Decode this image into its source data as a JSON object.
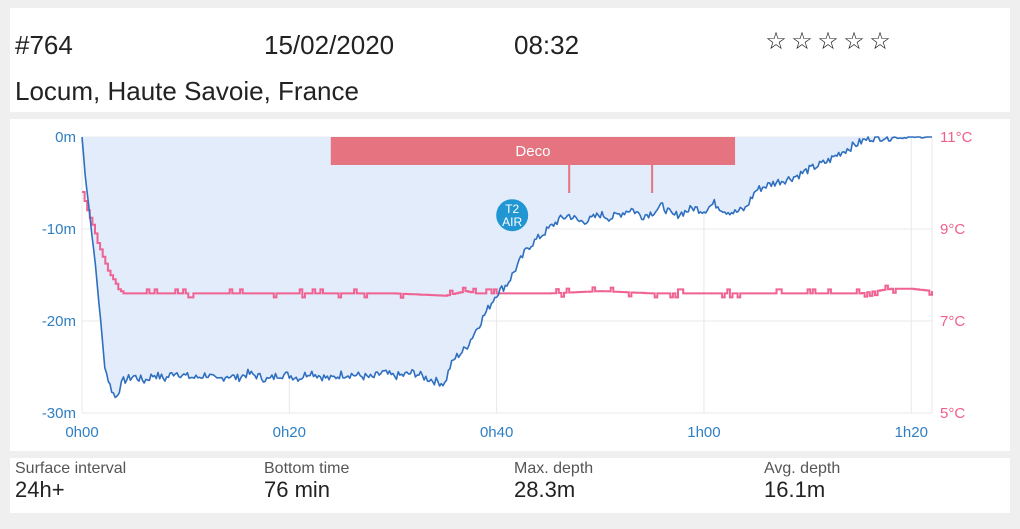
{
  "header": {
    "dive_number": "#764",
    "date": "15/02/2020",
    "time": "08:32",
    "rating": {
      "stars": 0,
      "max": 5,
      "empty_star_glyph": "☆",
      "full_star_glyph": "★"
    },
    "location": "Locum, Haute Savoie, France"
  },
  "colors": {
    "depth_line": "#2f6fbf",
    "depth_fill": "#e2ecfb",
    "temp_line": "#f06292",
    "deco_bar": "#e57380",
    "axis_left_text": "#2f7fc4",
    "axis_right_text": "#ef5f8a",
    "gas_badge": "#2196d3",
    "grid": "#e8e8e8"
  },
  "chart_data": {
    "type": "line",
    "x_ticks": [
      "0h00",
      "0h20",
      "0h40",
      "1h00",
      "1h20"
    ],
    "x_tick_minutes": [
      0,
      20,
      40,
      60,
      80
    ],
    "xlim": [
      0,
      82
    ],
    "depth_axis": {
      "ticks": [
        "0m",
        "-10m",
        "-20m",
        "-30m"
      ],
      "tick_values": [
        0,
        -10,
        -20,
        -30
      ],
      "ylim": [
        -30,
        0
      ]
    },
    "temp_axis": {
      "ticks": [
        "11°C",
        "9°C",
        "7°C",
        "5°C"
      ],
      "tick_values": [
        11,
        9,
        7,
        5
      ],
      "ylim": [
        5,
        11
      ]
    },
    "series": [
      {
        "name": "",
        "kind": "depth",
        "x": [
          0,
          0.3,
          0.8,
          1.3,
          1.8,
          2.2,
          2.7,
          3.2,
          4,
          5,
          6,
          7,
          8,
          9,
          10,
          11,
          12,
          13,
          14,
          15,
          16,
          17,
          18,
          19,
          20,
          21,
          22,
          23,
          24,
          25,
          26,
          27,
          28,
          29,
          30,
          31,
          32,
          33,
          34,
          35,
          35.5,
          36,
          37,
          38,
          39,
          40,
          41,
          42,
          43,
          44,
          45,
          46,
          47,
          48,
          49,
          50,
          51,
          52,
          53,
          54,
          55,
          56,
          57,
          58,
          59,
          60,
          61,
          62,
          63,
          64,
          65,
          66,
          67,
          68,
          69,
          70,
          71,
          72,
          73,
          74,
          75,
          76,
          77,
          78,
          79,
          80,
          81,
          82
        ],
        "y": [
          0,
          -4,
          -9,
          -14,
          -20,
          -25,
          -27,
          -28.3,
          -26.5,
          -26,
          -26.5,
          -25.8,
          -26.3,
          -25.5,
          -26,
          -26.2,
          -25.8,
          -26.5,
          -25.9,
          -26.2,
          -25.7,
          -26,
          -26.4,
          -25.8,
          -25.9,
          -26.2,
          -25.5,
          -26,
          -26.3,
          -25.8,
          -25.8,
          -26,
          -26.2,
          -25.6,
          -26,
          -25.9,
          -25.6,
          -26.1,
          -26.5,
          -26.8,
          -25,
          -24,
          -23,
          -21,
          -19,
          -17,
          -16,
          -14,
          -12,
          -11,
          -10,
          -9,
          -8.5,
          -9.2,
          -9,
          -8.4,
          -8.8,
          -8.3,
          -7.8,
          -8.6,
          -8.2,
          -7.5,
          -8.6,
          -8.2,
          -7.7,
          -8,
          -7.2,
          -8,
          -8.2,
          -7.8,
          -5.8,
          -5.3,
          -4.9,
          -4.6,
          -4.2,
          -3.6,
          -3.1,
          -2.6,
          -1.8,
          -1.2,
          -0.6,
          -0.1,
          0,
          0,
          -0.1,
          0,
          0,
          0
        ]
      },
      {
        "name": "",
        "kind": "temperature",
        "x": [
          0,
          0.5,
          1,
          1.5,
          2,
          2.5,
          3,
          3.5,
          4,
          10,
          20,
          30,
          35,
          36,
          37,
          38,
          40,
          45,
          50,
          55,
          60,
          65,
          70,
          75,
          78,
          80,
          82
        ],
        "y": [
          9.8,
          9.4,
          9.1,
          8.7,
          8.4,
          8.1,
          7.9,
          7.7,
          7.6,
          7.6,
          7.6,
          7.6,
          7.55,
          7.6,
          7.65,
          7.6,
          7.6,
          7.6,
          7.65,
          7.6,
          7.6,
          7.6,
          7.6,
          7.6,
          7.7,
          7.7,
          7.65
        ]
      }
    ],
    "deco_band": {
      "label": "Deco",
      "start_min": 24,
      "end_min": 63,
      "markers_min": [
        47,
        55
      ]
    },
    "gas_marker": {
      "label_line1": "T2",
      "label_line2": "AIR",
      "x_min": 41.5,
      "depth_m": -8.5
    }
  },
  "stats": [
    {
      "label": "Surface interval",
      "value": "24h+"
    },
    {
      "label": "Bottom time",
      "value": "76 min"
    },
    {
      "label": "Max. depth",
      "value": "28.3m"
    },
    {
      "label": "Avg. depth",
      "value": "16.1m"
    }
  ]
}
